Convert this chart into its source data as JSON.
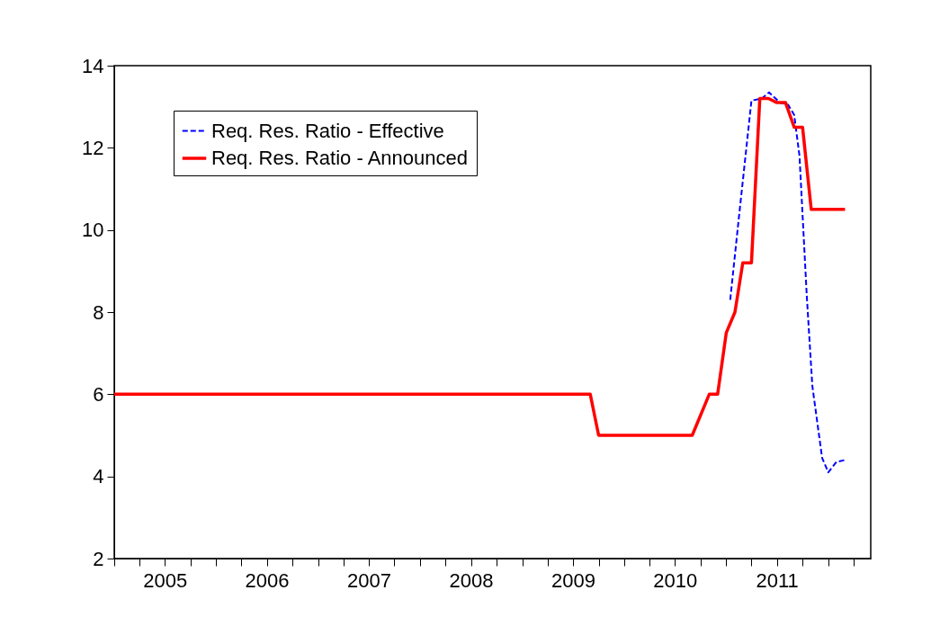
{
  "chart_data": {
    "type": "line",
    "xlim": [
      "2005-01-01",
      "2012-06-01"
    ],
    "xticks": [
      {
        "value": "2005-01-01",
        "label": null
      },
      {
        "value": "2005-04-01",
        "label": null
      },
      {
        "value": "2005-07-01",
        "label": "2005"
      },
      {
        "value": "2005-10-01",
        "label": null
      },
      {
        "value": "2006-01-01",
        "label": null
      },
      {
        "value": "2006-04-01",
        "label": null
      },
      {
        "value": "2006-07-01",
        "label": "2006"
      },
      {
        "value": "2006-10-01",
        "label": null
      },
      {
        "value": "2007-01-01",
        "label": null
      },
      {
        "value": "2007-04-01",
        "label": null
      },
      {
        "value": "2007-07-01",
        "label": "2007"
      },
      {
        "value": "2007-10-01",
        "label": null
      },
      {
        "value": "2008-01-01",
        "label": null
      },
      {
        "value": "2008-04-01",
        "label": null
      },
      {
        "value": "2008-07-01",
        "label": "2008"
      },
      {
        "value": "2008-10-01",
        "label": null
      },
      {
        "value": "2009-01-01",
        "label": null
      },
      {
        "value": "2009-04-01",
        "label": null
      },
      {
        "value": "2009-07-01",
        "label": "2009"
      },
      {
        "value": "2009-10-01",
        "label": null
      },
      {
        "value": "2010-01-01",
        "label": null
      },
      {
        "value": "2010-04-01",
        "label": null
      },
      {
        "value": "2010-07-01",
        "label": "2010"
      },
      {
        "value": "2010-10-01",
        "label": null
      },
      {
        "value": "2011-01-01",
        "label": null
      },
      {
        "value": "2011-04-01",
        "label": null
      },
      {
        "value": "2011-07-01",
        "label": "2011"
      },
      {
        "value": "2011-10-01",
        "label": null
      },
      {
        "value": "2012-01-01",
        "label": null
      },
      {
        "value": "2012-04-01",
        "label": null
      }
    ],
    "ylim": [
      2,
      14
    ],
    "yticks": [
      2,
      4,
      6,
      8,
      10,
      12,
      14
    ],
    "grid": false,
    "legend": "top left",
    "marker": "none",
    "series": [
      {
        "name": "Req. Res. Ratio - Effective",
        "color": "#0000ff",
        "line_style": "dashed",
        "x": [
          "2011-01-15",
          "2011-02-15",
          "2011-04-01",
          "2011-05-08",
          "2011-06-03",
          "2011-07-12",
          "2011-08-10",
          "2011-09-01",
          "2011-09-20",
          "2011-10-16",
          "2011-11-05",
          "2011-12-10",
          "2012-01-01",
          "2012-01-30",
          "2012-03-01"
        ],
        "values": [
          8.3,
          10.3,
          13.15,
          13.2,
          13.35,
          13.1,
          13.05,
          12.8,
          11.8,
          8.4,
          6.2,
          4.45,
          4.1,
          4.35,
          4.4
        ]
      },
      {
        "name": "Req. Res. Ratio - Announced",
        "color": "#ff0000",
        "line_style": "solid",
        "x": [
          "2005-01-01",
          "2009-09-01",
          "2009-10-01",
          "2010-09-01",
          "2010-11-01",
          "2010-12-01",
          "2011-01-01",
          "2011-02-01",
          "2011-03-01",
          "2011-04-01",
          "2011-05-01",
          "2011-06-01",
          "2011-07-01",
          "2011-08-01",
          "2011-09-01",
          "2011-10-01",
          "2011-11-01",
          "2012-03-01"
        ],
        "values": [
          6,
          6,
          5,
          5,
          6,
          6,
          7.5,
          8,
          9.2,
          9.2,
          13.2,
          13.2,
          13.1,
          13.1,
          12.5,
          12.5,
          10.5,
          10.5
        ]
      }
    ]
  }
}
